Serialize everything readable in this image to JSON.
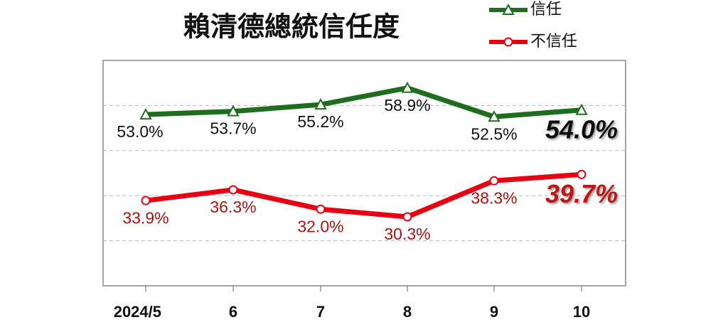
{
  "chart_data": {
    "type": "line",
    "title": "賴清德總統信任度",
    "categories": [
      "2024/5",
      "6",
      "7",
      "8",
      "9",
      "10"
    ],
    "series": [
      {
        "name": "信任",
        "color": "#1f6e1f",
        "marker": "triangle",
        "values": [
          53.0,
          53.7,
          55.2,
          58.9,
          52.5,
          54.0
        ],
        "value_labels": [
          "53.0%",
          "53.7%",
          "55.2%",
          "58.9%",
          "52.5%",
          "54.0%"
        ]
      },
      {
        "name": "不信任",
        "color": "#e60012",
        "marker": "circle",
        "values": [
          33.9,
          36.3,
          32.0,
          30.3,
          38.3,
          39.7
        ],
        "value_labels": [
          "33.9%",
          "36.3%",
          "32.0%",
          "30.3%",
          "38.3%",
          "39.7%"
        ]
      }
    ],
    "ylim": [
      15,
      65
    ],
    "yticks": [
      25,
      35,
      45,
      55
    ],
    "grid": true
  }
}
